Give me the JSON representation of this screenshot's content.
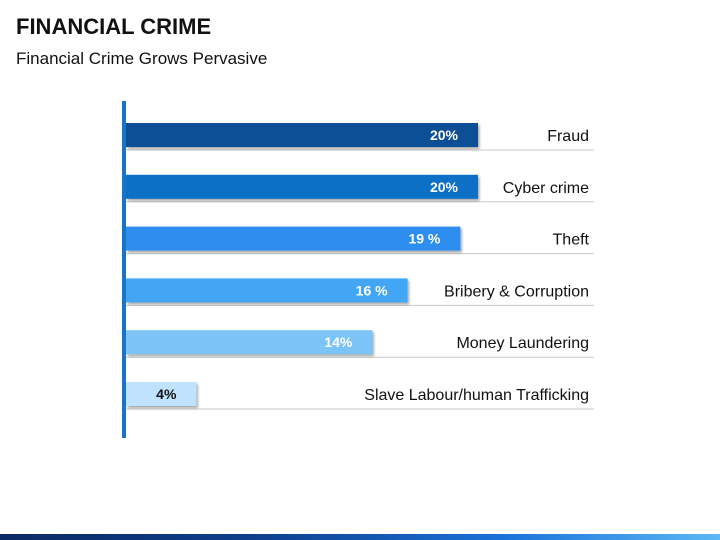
{
  "header": {
    "title": "FINANCIAL CRIME",
    "subtitle": "Financial Crime Grows Pervasive"
  },
  "chart_data": {
    "type": "bar",
    "orientation": "horizontal",
    "categories": [
      "Fraud",
      "Cyber crime",
      "Theft",
      "Bribery & Corruption",
      "Money Laundering",
      "Slave Labour/human Trafficking"
    ],
    "values": [
      20,
      20,
      19,
      16,
      14,
      4
    ],
    "value_labels": [
      "20%",
      "20%",
      "19 %",
      "16 %",
      "14%",
      "4%"
    ],
    "colors": [
      "#0a5096",
      "#0b6fc7",
      "#2d8ef0",
      "#43a6f4",
      "#7cc4f8",
      "#bfe3fd"
    ],
    "label_colors": [
      "#ffffff",
      "#ffffff",
      "#ffffff",
      "#ffffff",
      "#ffffff",
      "#111111"
    ],
    "axis_color": "#1a73c4",
    "separator_color": "#c8c8c8",
    "xlim": [
      0,
      20
    ]
  }
}
